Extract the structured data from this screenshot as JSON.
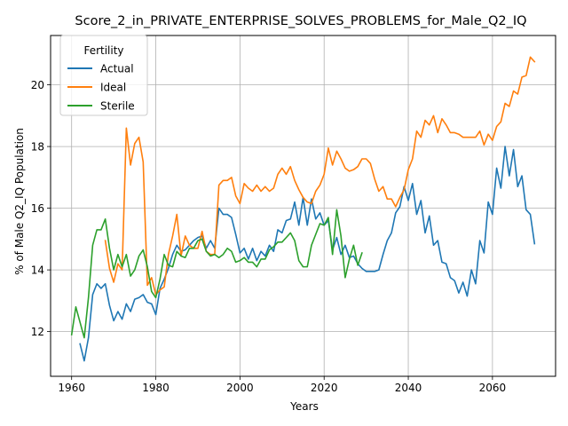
{
  "chart_data": {
    "type": "line",
    "title": "Score_2_in_PRIVATE_ENTERPRISE_SOLVES_PROBLEMS_for_Male_Q2_IQ",
    "xlabel": "Years",
    "ylabel": "% of Male Q2_IQ Population",
    "xlim": [
      1955,
      2075
    ],
    "ylim": [
      10.55,
      21.6
    ],
    "xticks": [
      1960,
      1980,
      2000,
      2020,
      2040,
      2060
    ],
    "yticks": [
      12,
      14,
      16,
      18,
      20
    ],
    "grid": true,
    "legend": {
      "title": "Fertility",
      "placement": "top-left"
    },
    "series": [
      {
        "name": "Actual",
        "color": "#1f77b4",
        "x": [
          1962,
          1963,
          1964,
          1965,
          1966,
          1967,
          1968,
          1969,
          1970,
          1971,
          1972,
          1973,
          1974,
          1975,
          1976,
          1977,
          1978,
          1979,
          1980,
          1981,
          1982,
          1983,
          1984,
          1985,
          1986,
          1987,
          1988,
          1989,
          1990,
          1991,
          1992,
          1993,
          1994,
          1995,
          1996,
          1997,
          1998,
          1999,
          2000,
          2001,
          2002,
          2003,
          2004,
          2005,
          2006,
          2007,
          2008,
          2009,
          2010,
          2011,
          2012,
          2013,
          2014,
          2015,
          2016,
          2017,
          2018,
          2019,
          2020,
          2021,
          2022,
          2023,
          2024,
          2025,
          2026,
          2027,
          2028,
          2029,
          2030,
          2031,
          2032,
          2033,
          2034,
          2035,
          2036,
          2037,
          2038,
          2039,
          2040,
          2041,
          2042,
          2043,
          2044,
          2045,
          2046,
          2047,
          2048,
          2049,
          2050,
          2051,
          2052,
          2053,
          2054,
          2055,
          2056,
          2057,
          2058,
          2059,
          2060,
          2061,
          2062,
          2063,
          2064,
          2065,
          2066,
          2067,
          2068,
          2069,
          2070
        ],
        "y": [
          11.6,
          11.05,
          11.8,
          13.2,
          13.55,
          13.4,
          13.55,
          12.85,
          12.35,
          12.65,
          12.4,
          12.9,
          12.65,
          13.05,
          13.1,
          13.2,
          12.95,
          12.9,
          12.55,
          13.4,
          13.7,
          14.05,
          14.5,
          14.8,
          14.6,
          14.65,
          14.8,
          14.95,
          15.05,
          15.1,
          14.7,
          14.95,
          14.7,
          16.0,
          15.8,
          15.8,
          15.7,
          15.15,
          14.55,
          14.7,
          14.35,
          14.7,
          14.3,
          14.6,
          14.45,
          14.8,
          14.6,
          15.3,
          15.2,
          15.6,
          15.65,
          16.2,
          15.45,
          16.35,
          15.45,
          16.3,
          15.65,
          15.85,
          15.45,
          15.6,
          14.65,
          15.05,
          14.5,
          14.8,
          14.4,
          14.45,
          14.2,
          14.05,
          13.95,
          13.95,
          13.95,
          14.0,
          14.5,
          14.95,
          15.2,
          15.85,
          16.05,
          16.7,
          16.25,
          16.8,
          15.8,
          16.25,
          15.2,
          15.75,
          14.8,
          14.95,
          14.25,
          14.2,
          13.75,
          13.65,
          13.25,
          13.6,
          13.15,
          14.0,
          13.55,
          14.95,
          14.55,
          16.2,
          15.8,
          17.3,
          16.65,
          18.0,
          17.05,
          17.9,
          16.7,
          17.05,
          15.95,
          15.8,
          14.85
        ]
      },
      {
        "name": "Ideal",
        "color": "#ff7f0e",
        "x": [
          1968,
          1969,
          1970,
          1971,
          1972,
          1973,
          1974,
          1975,
          1976,
          1977,
          1978,
          1979,
          1980,
          1981,
          1982,
          1983,
          1984,
          1985,
          1986,
          1987,
          1988,
          1989,
          1990,
          1991,
          1992,
          1993,
          1994,
          1995,
          1996,
          1997,
          1998,
          1999,
          2000,
          2001,
          2002,
          2003,
          2004,
          2005,
          2006,
          2007,
          2008,
          2009,
          2010,
          2011,
          2012,
          2013,
          2014,
          2015,
          2016,
          2017,
          2018,
          2019,
          2020,
          2021,
          2022,
          2023,
          2024,
          2025,
          2026,
          2027,
          2028,
          2029,
          2030,
          2031,
          2032,
          2033,
          2034,
          2035,
          2036,
          2037,
          2038,
          2039,
          2040,
          2041,
          2042,
          2043,
          2044,
          2045,
          2046,
          2047,
          2048,
          2049,
          2050,
          2051,
          2052,
          2053,
          2054,
          2055,
          2056,
          2057,
          2058,
          2059,
          2060,
          2061,
          2062,
          2063,
          2064,
          2065,
          2066,
          2067,
          2068,
          2069,
          2070
        ],
        "y": [
          14.95,
          14.05,
          13.6,
          14.2,
          14.0,
          18.6,
          17.4,
          18.1,
          18.3,
          17.5,
          13.5,
          13.75,
          13.2,
          13.35,
          13.45,
          14.5,
          15.1,
          15.8,
          14.45,
          15.1,
          14.8,
          14.7,
          14.7,
          15.25,
          14.6,
          14.5,
          14.5,
          16.75,
          16.9,
          16.9,
          17.0,
          16.4,
          16.15,
          16.8,
          16.65,
          16.55,
          16.75,
          16.55,
          16.7,
          16.55,
          16.65,
          17.1,
          17.3,
          17.1,
          17.35,
          16.9,
          16.6,
          16.35,
          16.2,
          16.15,
          16.55,
          16.75,
          17.1,
          17.95,
          17.4,
          17.85,
          17.6,
          17.3,
          17.2,
          17.25,
          17.35,
          17.6,
          17.6,
          17.45,
          16.95,
          16.55,
          16.7,
          16.3,
          16.3,
          16.05,
          16.35,
          16.6,
          17.25,
          17.6,
          18.5,
          18.3,
          18.85,
          18.7,
          19.0,
          18.45,
          18.9,
          18.7,
          18.45,
          18.45,
          18.4,
          18.3,
          18.3,
          18.3,
          18.3,
          18.5,
          18.05,
          18.4,
          18.2,
          18.65,
          18.8,
          19.4,
          19.3,
          19.8,
          19.7,
          20.25,
          20.3,
          20.9,
          20.75
        ]
      },
      {
        "name": "Sterile",
        "color": "#2ca02c",
        "x": [
          1960,
          1961,
          1962,
          1963,
          1964,
          1965,
          1966,
          1967,
          1968,
          1969,
          1970,
          1971,
          1972,
          1973,
          1974,
          1975,
          1976,
          1977,
          1978,
          1979,
          1980,
          1981,
          1982,
          1983,
          1984,
          1985,
          1986,
          1987,
          1988,
          1989,
          1990,
          1991,
          1992,
          1993,
          1994,
          1995,
          1996,
          1997,
          1998,
          1999,
          2000,
          2001,
          2002,
          2003,
          2004,
          2005,
          2006,
          2007,
          2008,
          2009,
          2010,
          2011,
          2012,
          2013,
          2014,
          2015,
          2016,
          2017,
          2018,
          2019,
          2020,
          2021,
          2022,
          2023,
          2024,
          2025,
          2026,
          2027,
          2028,
          2029
        ],
        "y": [
          11.9,
          12.8,
          12.3,
          11.8,
          13.1,
          14.8,
          15.3,
          15.3,
          15.65,
          14.7,
          14.0,
          14.5,
          14.1,
          14.5,
          13.8,
          14.0,
          14.45,
          14.65,
          14.1,
          13.3,
          13.1,
          13.7,
          14.5,
          14.15,
          14.1,
          14.6,
          14.45,
          14.4,
          14.7,
          14.7,
          14.95,
          15.0,
          14.6,
          14.45,
          14.5,
          14.4,
          14.5,
          14.7,
          14.6,
          14.25,
          14.3,
          14.4,
          14.25,
          14.25,
          14.1,
          14.35,
          14.35,
          14.65,
          14.75,
          14.9,
          14.9,
          15.05,
          15.2,
          14.95,
          14.3,
          14.1,
          14.1,
          14.8,
          15.15,
          15.5,
          15.45,
          15.7,
          14.5,
          15.95,
          15.1,
          13.75,
          14.35,
          14.8,
          14.15,
          14.55
        ]
      }
    ]
  }
}
